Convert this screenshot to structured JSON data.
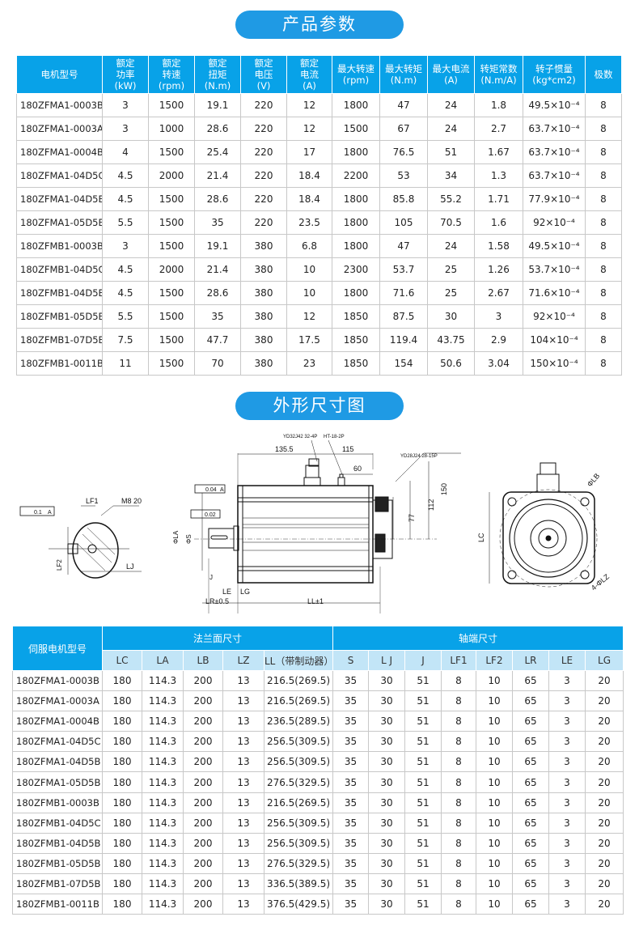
{
  "section1_title": "产品参数",
  "section2_title": "外形尺寸图",
  "params_table": {
    "headers": [
      "电机型号",
      "额定\n功率\n(kW)",
      "额定\n转速\n(rpm)",
      "额定\n扭矩\n(N.m)",
      "额定\n电压\n(V)",
      "额定\n电流\n(A)",
      "最大转速\n(rpm)",
      "最大转矩\n(N.m)",
      "最大电流\n(A)",
      "转矩常数\n(N.m/A)",
      "转子惯量\n(kg*cm2)",
      "极数"
    ],
    "rows": [
      [
        "180ZFMA1-0003B",
        "3",
        "1500",
        "19.1",
        "220",
        "12",
        "1800",
        "47",
        "24",
        "1.8",
        "49.5×10⁻⁴",
        "8"
      ],
      [
        "180ZFMA1-0003A",
        "3",
        "1000",
        "28.6",
        "220",
        "12",
        "1500",
        "67",
        "24",
        "2.7",
        "63.7×10⁻⁴",
        "8"
      ],
      [
        "180ZFMA1-0004B",
        "4",
        "1500",
        "25.4",
        "220",
        "17",
        "1800",
        "76.5",
        "51",
        "1.67",
        "63.7×10⁻⁴",
        "8"
      ],
      [
        "180ZFMA1-04D5C",
        "4.5",
        "2000",
        "21.4",
        "220",
        "18.4",
        "2200",
        "53",
        "34",
        "1.3",
        "63.7×10⁻⁴",
        "8"
      ],
      [
        "180ZFMA1-04D5B",
        "4.5",
        "1500",
        "28.6",
        "220",
        "18.4",
        "1800",
        "85.8",
        "55.2",
        "1.71",
        "77.9×10⁻⁴",
        "8"
      ],
      [
        "180ZFMA1-05D5B",
        "5.5",
        "1500",
        "35",
        "220",
        "23.5",
        "1800",
        "105",
        "70.5",
        "1.6",
        "92×10⁻⁴",
        "8"
      ],
      [
        "180ZFMB1-0003B",
        "3",
        "1500",
        "19.1",
        "380",
        "6.8",
        "1800",
        "47",
        "24",
        "1.58",
        "49.5×10⁻⁴",
        "8"
      ],
      [
        "180ZFMB1-04D5C",
        "4.5",
        "2000",
        "21.4",
        "380",
        "10",
        "2300",
        "53.7",
        "25",
        "1.26",
        "53.7×10⁻⁴",
        "8"
      ],
      [
        "180ZFMB1-04D5B",
        "4.5",
        "1500",
        "28.6",
        "380",
        "10",
        "1800",
        "71.6",
        "25",
        "2.67",
        "71.6×10⁻⁴",
        "8"
      ],
      [
        "180ZFMB1-05D5B",
        "5.5",
        "1500",
        "35",
        "380",
        "12",
        "1850",
        "87.5",
        "30",
        "3",
        "92×10⁻⁴",
        "8"
      ],
      [
        "180ZFMB1-07D5B",
        "7.5",
        "1500",
        "47.7",
        "380",
        "17.5",
        "1850",
        "119.4",
        "43.75",
        "2.9",
        "104×10⁻⁴",
        "8"
      ],
      [
        "180ZFMB1-0011B",
        "11",
        "1500",
        "70",
        "380",
        "23",
        "1850",
        "154",
        "50.6",
        "3.04",
        "150×10⁻⁴",
        "8"
      ]
    ]
  },
  "drawing": {
    "labels": [
      "YD32J42 32-4P",
      "HT-18-2P",
      "YD28J24 28-15P",
      "135.5",
      "115",
      "60",
      "150",
      "112",
      "77",
      "0.04",
      "A",
      "0.02",
      "ΦLA",
      "ΦS",
      "J",
      "LE",
      "LG",
      "LR±0.5",
      "LL±1",
      "0.1",
      "A",
      "LF1",
      "M8 20",
      "LF2",
      "LJ",
      "LC",
      "ΦLB",
      "4-ΦLZ"
    ]
  },
  "dims_table": {
    "model_header": "伺服电机型号",
    "flange_header": "法兰面尺寸",
    "shaft_header": "轴端尺寸",
    "sub_headers": [
      "LC",
      "LA",
      "LB",
      "LZ",
      "LL（带制动器）",
      "S",
      "L J",
      "J",
      "LF1",
      "LF2",
      "LR",
      "LE",
      "LG"
    ],
    "rows": [
      [
        "180ZFMA1-0003B",
        "180",
        "114.3",
        "200",
        "13",
        "216.5(269.5)",
        "35",
        "30",
        "51",
        "8",
        "10",
        "65",
        "3",
        "20"
      ],
      [
        "180ZFMA1-0003A",
        "180",
        "114.3",
        "200",
        "13",
        "216.5(269.5)",
        "35",
        "30",
        "51",
        "8",
        "10",
        "65",
        "3",
        "20"
      ],
      [
        "180ZFMA1-0004B",
        "180",
        "114.3",
        "200",
        "13",
        "236.5(289.5)",
        "35",
        "30",
        "51",
        "8",
        "10",
        "65",
        "3",
        "20"
      ],
      [
        "180ZFMA1-04D5C",
        "180",
        "114.3",
        "200",
        "13",
        "256.5(309.5)",
        "35",
        "30",
        "51",
        "8",
        "10",
        "65",
        "3",
        "20"
      ],
      [
        "180ZFMA1-04D5B",
        "180",
        "114.3",
        "200",
        "13",
        "256.5(309.5)",
        "35",
        "30",
        "51",
        "8",
        "10",
        "65",
        "3",
        "20"
      ],
      [
        "180ZFMA1-05D5B",
        "180",
        "114.3",
        "200",
        "13",
        "276.5(329.5)",
        "35",
        "30",
        "51",
        "8",
        "10",
        "65",
        "3",
        "20"
      ],
      [
        "180ZFMB1-0003B",
        "180",
        "114.3",
        "200",
        "13",
        "216.5(269.5)",
        "35",
        "30",
        "51",
        "8",
        "10",
        "65",
        "3",
        "20"
      ],
      [
        "180ZFMB1-04D5C",
        "180",
        "114.3",
        "200",
        "13",
        "256.5(309.5)",
        "35",
        "30",
        "51",
        "8",
        "10",
        "65",
        "3",
        "20"
      ],
      [
        "180ZFMB1-04D5B",
        "180",
        "114.3",
        "200",
        "13",
        "256.5(309.5)",
        "35",
        "30",
        "51",
        "8",
        "10",
        "65",
        "3",
        "20"
      ],
      [
        "180ZFMB1-05D5B",
        "180",
        "114.3",
        "200",
        "13",
        "276.5(329.5)",
        "35",
        "30",
        "51",
        "8",
        "10",
        "65",
        "3",
        "20"
      ],
      [
        "180ZFMB1-07D5B",
        "180",
        "114.3",
        "200",
        "13",
        "336.5(389.5)",
        "35",
        "30",
        "51",
        "8",
        "10",
        "65",
        "3",
        "20"
      ],
      [
        "180ZFMB1-0011B",
        "180",
        "114.3",
        "200",
        "13",
        "376.5(429.5)",
        "35",
        "30",
        "51",
        "8",
        "10",
        "65",
        "3",
        "20"
      ]
    ]
  }
}
